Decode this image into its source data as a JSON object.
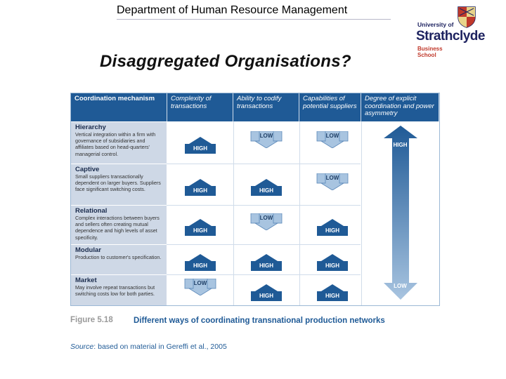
{
  "header": {
    "department": "Department of Human Resource Management"
  },
  "logo": {
    "line1": "University of",
    "line2": "Strathclyde",
    "line3a": "Business",
    "line3b": "School",
    "colors": {
      "navy": "#1e2360",
      "red": "#c0392b"
    }
  },
  "slide": {
    "title": "Disaggregated Organisations?"
  },
  "table": {
    "headers": [
      "Coordination mechanism",
      "Complexity of transactions",
      "Ability to codify transactions",
      "Capabilities of potential suppliers",
      "Degree of explicit coordination and power asymmetry"
    ],
    "rows": [
      {
        "name": "Hierarchy",
        "desc": "Vertical integration within a firm with governance of subsidiaries and affiliates based on head-quarters' managerial control.",
        "values": [
          "HIGH",
          "LOW",
          "LOW"
        ]
      },
      {
        "name": "Captive",
        "desc": "Small suppliers transactionally dependent on larger buyers. Suppliers face significant switching costs.",
        "values": [
          "HIGH",
          "HIGH",
          "LOW"
        ]
      },
      {
        "name": "Relational",
        "desc": "Complex interactions between buyers and sellers often creating mutual dependence and high levels of asset specificity.",
        "values": [
          "HIGH",
          "LOW",
          "HIGH"
        ]
      },
      {
        "name": "Modular",
        "desc": "Production to customer's specification.",
        "values": [
          "HIGH",
          "HIGH",
          "HIGH"
        ]
      },
      {
        "name": "Market",
        "desc": "May involve repeat transactions but switching costs low for both parties.",
        "values": [
          "LOW",
          "HIGH",
          "HIGH"
        ]
      }
    ],
    "scale": {
      "top": "HIGH",
      "bottom": "LOW"
    },
    "colors": {
      "header": "#1f5a96",
      "label_bg": "#ced8e6",
      "high_arrow": "#1f5a96",
      "low_arrow": "#a8c4e0"
    }
  },
  "figure": {
    "label": "Figure 5.18",
    "caption": "Different ways of coordinating transnational production networks",
    "source_label": "Source",
    "source_text": ": based on material in Gereffi et al., 2005"
  }
}
